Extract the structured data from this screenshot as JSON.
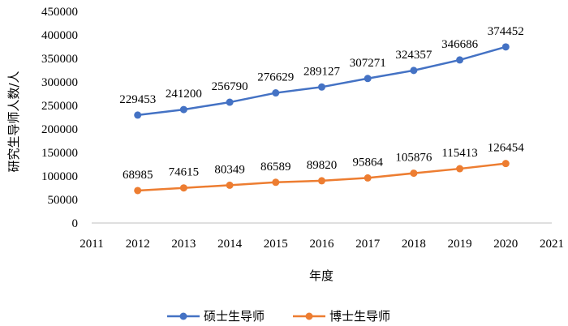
{
  "chart_data": {
    "type": "line",
    "title": "",
    "xlabel": "年度",
    "ylabel": "研究生导师人数/人",
    "x": [
      2012,
      2013,
      2014,
      2015,
      2016,
      2017,
      2018,
      2019,
      2020
    ],
    "xlim": [
      2011,
      2021
    ],
    "xticks": [
      2011,
      2012,
      2013,
      2014,
      2015,
      2016,
      2017,
      2018,
      2019,
      2020,
      2021
    ],
    "ylim": [
      0,
      450000
    ],
    "yticks": [
      0,
      50000,
      100000,
      150000,
      200000,
      250000,
      300000,
      350000,
      400000,
      450000
    ],
    "grid": false,
    "legend_position": "bottom",
    "series": [
      {
        "name": "硕士生导师",
        "color": "#4472C4",
        "values": [
          229453,
          241200,
          256790,
          276629,
          289127,
          307271,
          324357,
          346686,
          374452
        ]
      },
      {
        "name": "博士生导师",
        "color": "#ED7D31",
        "values": [
          68985,
          74615,
          80349,
          86589,
          89820,
          95864,
          105876,
          115413,
          126454
        ]
      }
    ]
  }
}
